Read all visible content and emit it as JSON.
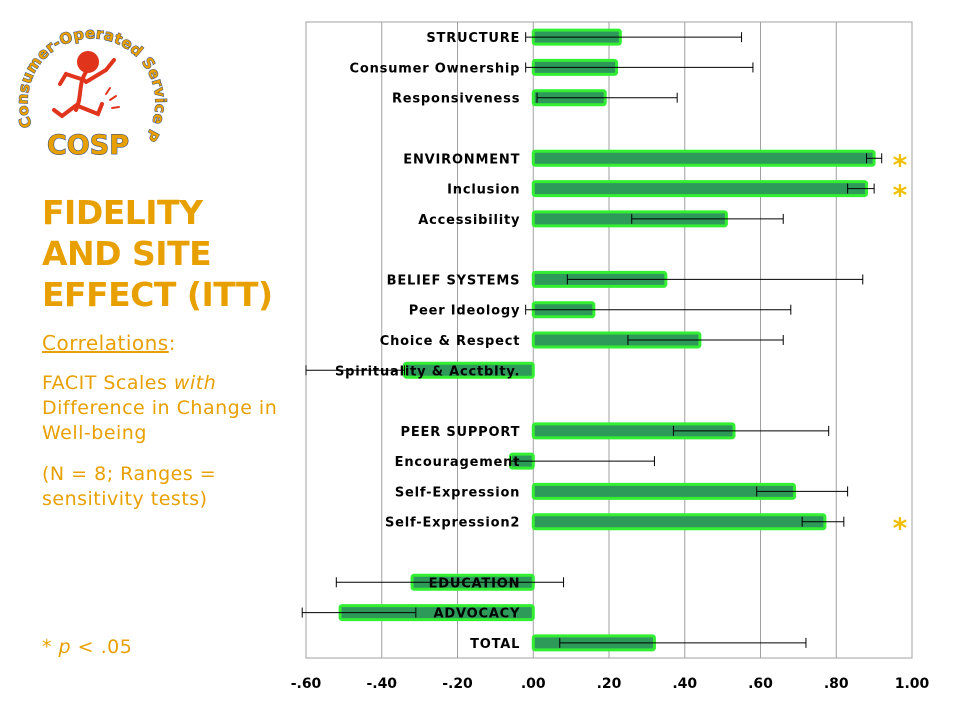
{
  "logo": {
    "arc_text": "Consumer-Operated Service Program",
    "abbr": "COSP"
  },
  "sidebar": {
    "title": "FIDELITY AND SITE EFFECT (ITT)",
    "correlations_label": "Correlations",
    "correlations_colon": ":",
    "facit_prefix": "FACIT Scales ",
    "facit_with": "with",
    "facit_suffix": " Difference in Change in Well-being",
    "n_note": "(N = 8;  Ranges = sensitivity tests)",
    "p_note_star": "* ",
    "p_note_p": "p",
    "p_note_rest": " < .05"
  },
  "colors": {
    "accent": "#e8a000",
    "bar_fill": "#2e9a5a",
    "bar_border": "#33ee33",
    "grid": "#a0a0a0",
    "star": "#f0c000"
  },
  "chart_data": {
    "type": "bar",
    "orientation": "horizontal",
    "xlim": [
      -0.6,
      1.0
    ],
    "xticks": [
      "-.60",
      "-.40",
      "-.20",
      ".00",
      ".20",
      ".40",
      ".60",
      ".80",
      "1.00"
    ],
    "grid": true,
    "categories": [
      "STRUCTURE",
      "Consumer Ownership",
      "Responsiveness",
      "",
      "ENVIRONMENT",
      "Inclusion",
      "Accessibility",
      "",
      "BELIEF SYSTEMS",
      "Peer Ideology",
      "Choice & Respect",
      "Spirituality & Acctblty.",
      "",
      "PEER SUPPORT",
      "Encouragement",
      "Self-Expression",
      "Self-Expression2",
      "",
      "EDUCATION",
      "ADVOCACY",
      "TOTAL"
    ],
    "values": [
      0.23,
      0.22,
      0.19,
      null,
      0.9,
      0.88,
      0.51,
      null,
      0.35,
      0.16,
      0.44,
      -0.34,
      null,
      0.53,
      -0.06,
      0.69,
      0.77,
      null,
      -0.32,
      -0.51,
      0.32
    ],
    "ranges": [
      [
        -0.02,
        0.55
      ],
      [
        -0.02,
        0.58
      ],
      [
        0.01,
        0.38
      ],
      null,
      [
        0.88,
        0.92
      ],
      [
        0.83,
        0.9
      ],
      [
        0.26,
        0.66
      ],
      null,
      [
        0.09,
        0.87
      ],
      [
        -0.02,
        0.68
      ],
      [
        0.25,
        0.66
      ],
      [
        -0.6,
        -0.34
      ],
      null,
      [
        0.37,
        0.78
      ],
      [
        -0.06,
        0.32
      ],
      [
        0.59,
        0.83
      ],
      [
        0.71,
        0.82
      ],
      null,
      [
        -0.52,
        0.08
      ],
      [
        -0.61,
        -0.31
      ],
      [
        0.07,
        0.72
      ]
    ],
    "significant": [
      false,
      false,
      false,
      false,
      true,
      true,
      false,
      false,
      false,
      false,
      false,
      false,
      false,
      false,
      false,
      false,
      true,
      false,
      false,
      false,
      false
    ],
    "significance_marker": "*"
  }
}
